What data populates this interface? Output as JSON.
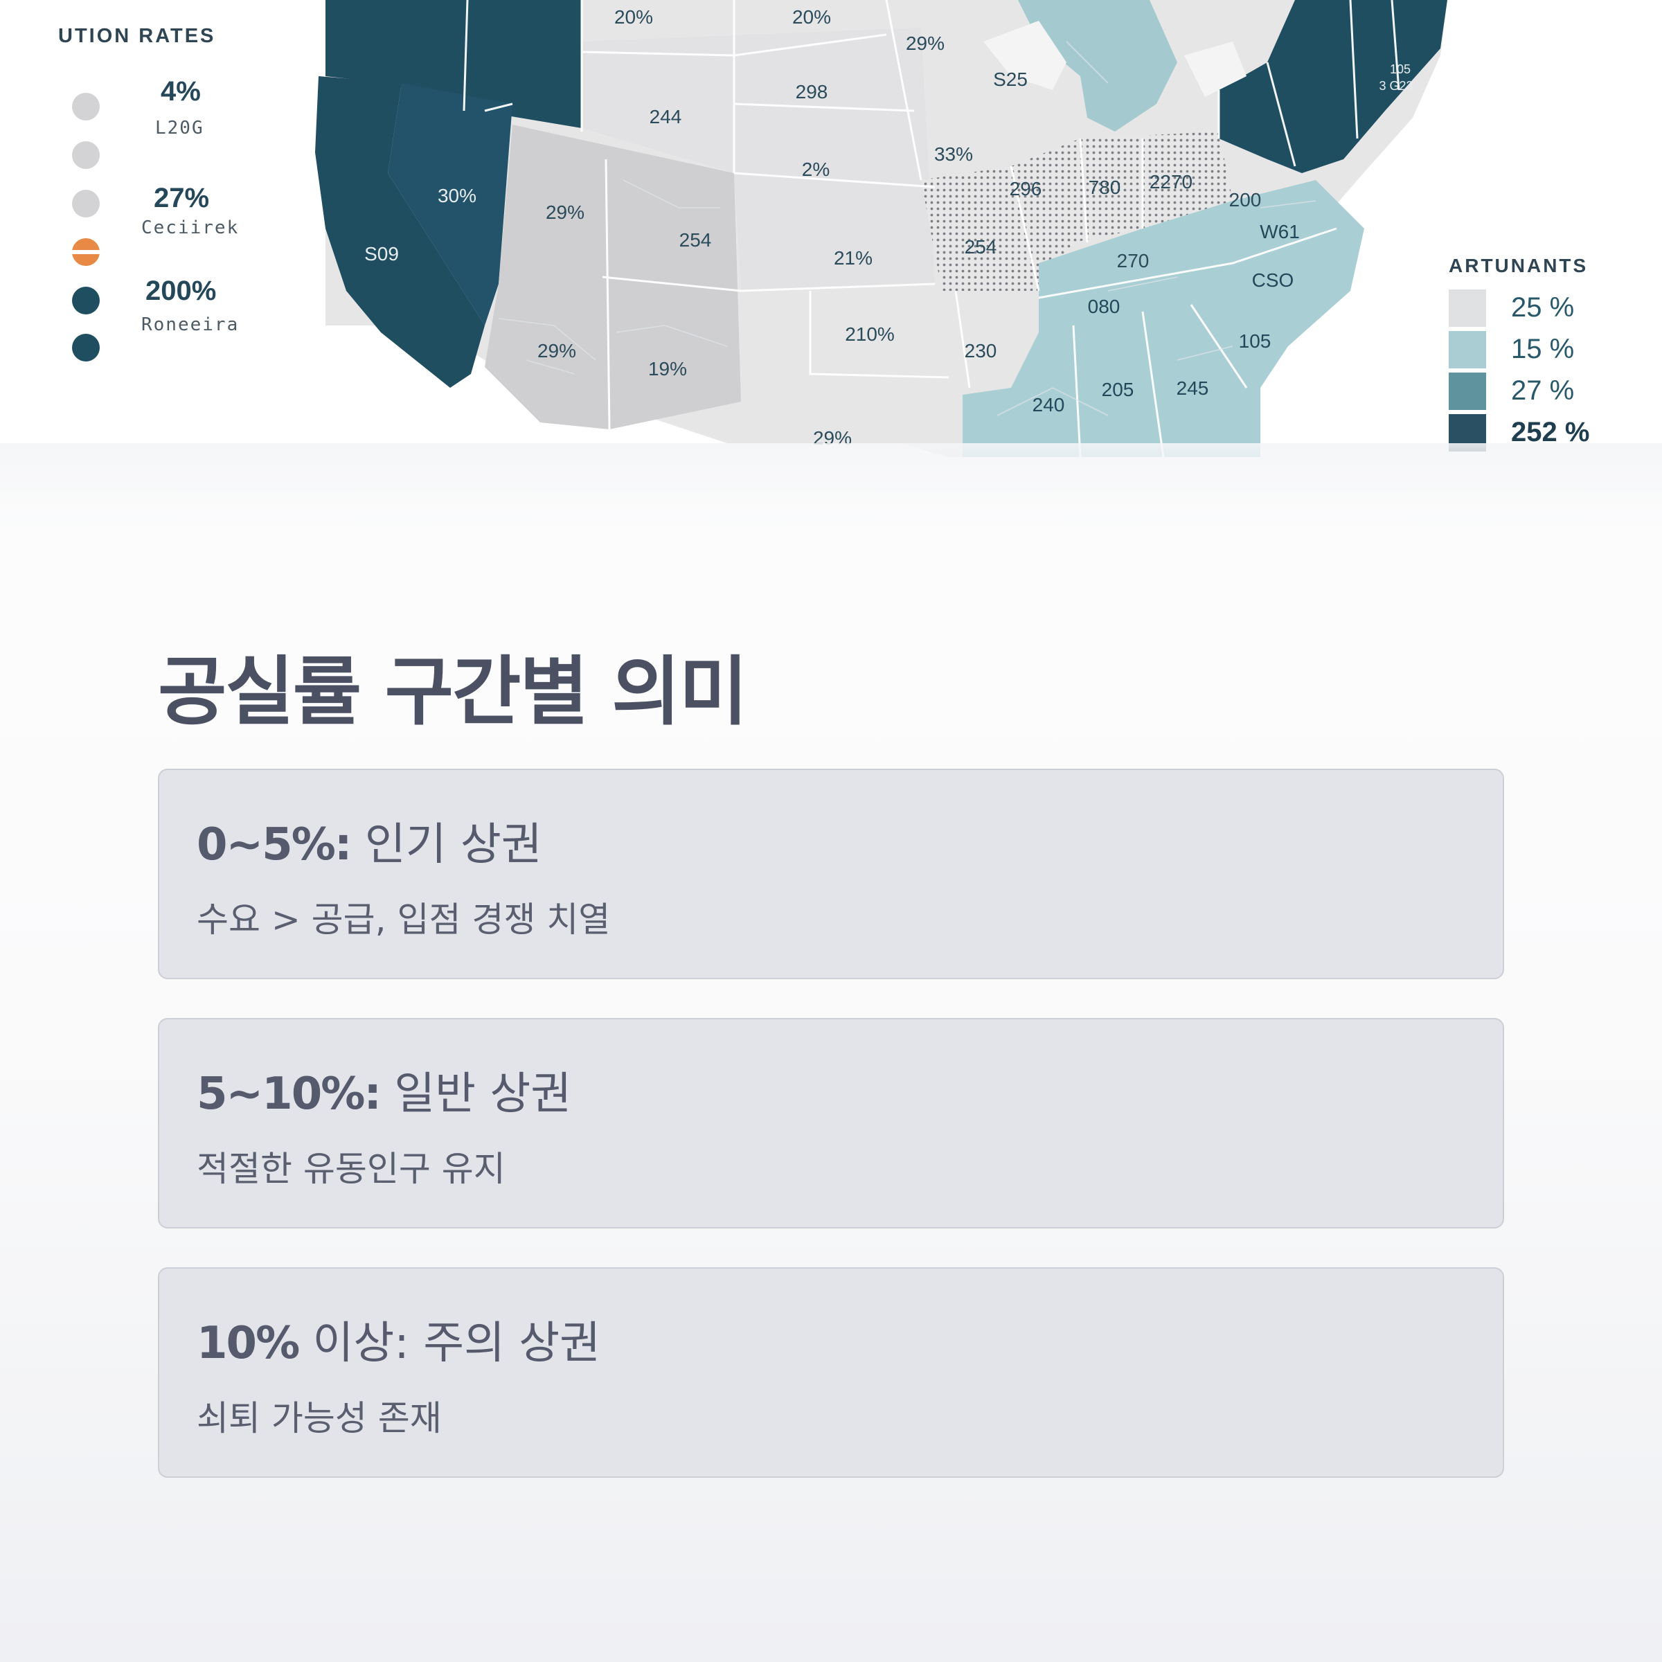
{
  "map": {
    "left_legend": {
      "title": "UTION RATES",
      "items": [
        {
          "value": "4%",
          "sub": "L20G"
        },
        {
          "value": "27%",
          "sub": "Ceciirek"
        },
        {
          "value": "200%",
          "sub": "Roneeira"
        }
      ],
      "dot_colors": [
        "#d3d3d5",
        "#d3d3d5",
        "#d3d3d5",
        "#e07a3c",
        "#1f4e61",
        "#1f4e61"
      ]
    },
    "right_legend": {
      "title": "ARTUNANTS",
      "items": [
        {
          "label": "25 %",
          "color": "#dfe1e3"
        },
        {
          "label": "15 %",
          "color": "#a9cdd3"
        },
        {
          "label": "27 %",
          "color": "#5f939e"
        },
        {
          "label": "252 %",
          "color": "#2a5063"
        }
      ]
    },
    "state_labels": [
      "20%",
      "20%",
      "29%",
      "S25",
      "298",
      "244",
      "2%",
      "33%",
      "30%",
      "29%",
      "254",
      "21%",
      "S09",
      "296",
      "780",
      "2270",
      "200",
      "W61",
      "254",
      "270",
      "080",
      "CSO",
      "210%",
      "230",
      "29%",
      "19%",
      "105",
      "205",
      "245",
      "240",
      "29%",
      "105",
      "3 G23"
    ]
  },
  "section": {
    "title": "공실률 구간별 의미",
    "cards": [
      {
        "range": "0~5%:",
        "label": " 인기 상권",
        "desc": "수요 > 공급, 입점 경쟁 치열"
      },
      {
        "range": "5~10%:",
        "label": " 일반 상권",
        "desc": "적절한 유동인구 유지"
      },
      {
        "range": "10%",
        "label": " 이상: 주의 상권",
        "desc": "쇠퇴 가능성 존재"
      }
    ]
  }
}
